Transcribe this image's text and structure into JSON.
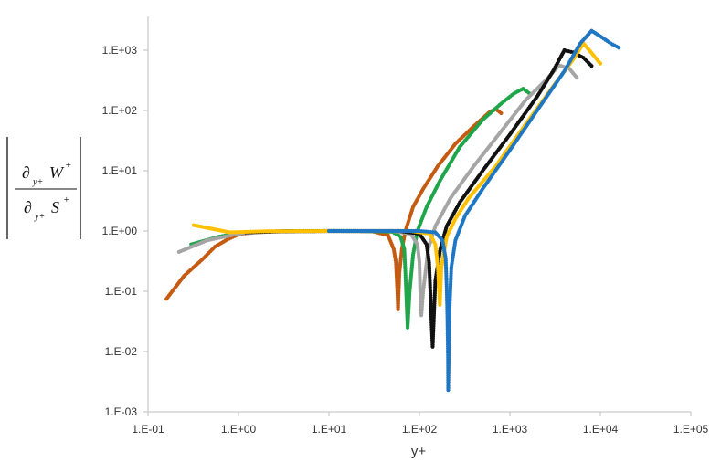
{
  "chart_data": {
    "type": "scatter",
    "xscale": "log",
    "yscale": "log",
    "xlim": [
      0.1,
      100000
    ],
    "ylim": [
      0.001,
      2000
    ],
    "xticks": [
      "1.E-01",
      "1.E+00",
      "1.E+01",
      "1.E+02",
      "1.E+03",
      "1.E+04",
      "1.E+05"
    ],
    "yticks": [
      "1.E-03",
      "1.E-02",
      "1.E-01",
      "1.E+00",
      "1.E+01",
      "1.E+02",
      "1.E+03"
    ],
    "xlabel": "y+",
    "ylabel": {
      "top_symbol": "∂",
      "top_subscript": "y+",
      "top_var": "W",
      "top_sup": "+",
      "bottom_symbol": "∂",
      "bottom_subscript": "y+",
      "bottom_var": "S",
      "bottom_sup": "+"
    },
    "grid": false,
    "legend": "none",
    "series": [
      {
        "color": "#c55a11",
        "points": [
          [
            0.16,
            0.075
          ],
          [
            0.25,
            0.18
          ],
          [
            0.4,
            0.34
          ],
          [
            0.55,
            0.55
          ],
          [
            0.75,
            0.72
          ],
          [
            1.0,
            0.88
          ],
          [
            1.5,
            0.95
          ],
          [
            3,
            0.99
          ],
          [
            10,
            1.0
          ],
          [
            30,
            0.99
          ],
          [
            45,
            0.85
          ],
          [
            52,
            0.5
          ],
          [
            55,
            0.3
          ],
          [
            57,
            0.1
          ],
          [
            58,
            0.05
          ],
          [
            60,
            0.2
          ],
          [
            64,
            0.5
          ],
          [
            70,
            1.0
          ],
          [
            85,
            2.5
          ],
          [
            110,
            5
          ],
          [
            160,
            12
          ],
          [
            250,
            28
          ],
          [
            400,
            55
          ],
          [
            600,
            95
          ],
          [
            700,
            105
          ],
          [
            800,
            90
          ]
        ]
      },
      {
        "color": "#1fa64a",
        "points": [
          [
            0.3,
            0.6
          ],
          [
            0.6,
            0.8
          ],
          [
            1.0,
            0.93
          ],
          [
            2,
            0.98
          ],
          [
            5,
            1.0
          ],
          [
            20,
            1.0
          ],
          [
            50,
            0.97
          ],
          [
            62,
            0.8
          ],
          [
            68,
            0.5
          ],
          [
            70,
            0.2
          ],
          [
            72,
            0.07
          ],
          [
            74,
            0.025
          ],
          [
            78,
            0.1
          ],
          [
            85,
            0.4
          ],
          [
            95,
            1.0
          ],
          [
            120,
            2.5
          ],
          [
            170,
            7
          ],
          [
            280,
            25
          ],
          [
            500,
            70
          ],
          [
            800,
            130
          ],
          [
            1100,
            190
          ],
          [
            1400,
            230
          ],
          [
            1700,
            185
          ]
        ]
      },
      {
        "color": "#a5a5a5",
        "points": [
          [
            0.22,
            0.45
          ],
          [
            0.45,
            0.7
          ],
          [
            1.0,
            0.9
          ],
          [
            2,
            0.97
          ],
          [
            10,
            1.0
          ],
          [
            50,
            1.0
          ],
          [
            80,
            0.9
          ],
          [
            95,
            0.6
          ],
          [
            100,
            0.3
          ],
          [
            102,
            0.1
          ],
          [
            105,
            0.04
          ],
          [
            110,
            0.1
          ],
          [
            125,
            0.5
          ],
          [
            150,
            1.2
          ],
          [
            220,
            3.5
          ],
          [
            400,
            12
          ],
          [
            800,
            45
          ],
          [
            1500,
            150
          ],
          [
            2500,
            320
          ],
          [
            3500,
            560
          ],
          [
            4500,
            500
          ],
          [
            5500,
            350
          ]
        ]
      },
      {
        "color": "#111111",
        "points": [
          [
            1.2,
            0.95
          ],
          [
            3,
            0.99
          ],
          [
            10,
            1.0
          ],
          [
            60,
            1.0
          ],
          [
            100,
            0.9
          ],
          [
            120,
            0.6
          ],
          [
            128,
            0.3
          ],
          [
            132,
            0.1
          ],
          [
            136,
            0.03
          ],
          [
            140,
            0.012
          ],
          [
            150,
            0.15
          ],
          [
            170,
            0.5
          ],
          [
            200,
            1.2
          ],
          [
            280,
            3
          ],
          [
            500,
            10
          ],
          [
            1000,
            40
          ],
          [
            2000,
            170
          ],
          [
            3000,
            450
          ],
          [
            4000,
            1000
          ],
          [
            5000,
            920
          ],
          [
            6500,
            750
          ],
          [
            8000,
            550
          ]
        ]
      },
      {
        "color": "#ffc000",
        "points": [
          [
            0.32,
            1.25
          ],
          [
            0.8,
            0.95
          ],
          [
            2,
            0.99
          ],
          [
            10,
            1.0
          ],
          [
            80,
            1.0
          ],
          [
            130,
            0.9
          ],
          [
            150,
            0.6
          ],
          [
            160,
            0.25
          ],
          [
            165,
            0.1
          ],
          [
            168,
            0.06
          ],
          [
            175,
            0.25
          ],
          [
            200,
            0.8
          ],
          [
            250,
            1.6
          ],
          [
            350,
            3.5
          ],
          [
            700,
            12
          ],
          [
            1500,
            60
          ],
          [
            3000,
            250
          ],
          [
            5000,
            700
          ],
          [
            6500,
            1300
          ],
          [
            8000,
            900
          ],
          [
            10000,
            600
          ]
        ]
      },
      {
        "color": "#1f77c4",
        "points": [
          [
            10,
            1.0
          ],
          [
            100,
            1.0
          ],
          [
            150,
            0.95
          ],
          [
            180,
            0.7
          ],
          [
            195,
            0.35
          ],
          [
            200,
            0.12
          ],
          [
            203,
            0.05
          ],
          [
            205,
            0.02
          ],
          [
            207,
            0.008
          ],
          [
            208,
            0.0023
          ],
          [
            215,
            0.05
          ],
          [
            225,
            0.25
          ],
          [
            250,
            0.7
          ],
          [
            320,
            1.8
          ],
          [
            500,
            5
          ],
          [
            1000,
            22
          ],
          [
            2000,
            100
          ],
          [
            4000,
            450
          ],
          [
            6000,
            1300
          ],
          [
            8000,
            2100
          ],
          [
            10000,
            1700
          ],
          [
            13000,
            1300
          ],
          [
            16000,
            1100
          ]
        ]
      }
    ]
  }
}
